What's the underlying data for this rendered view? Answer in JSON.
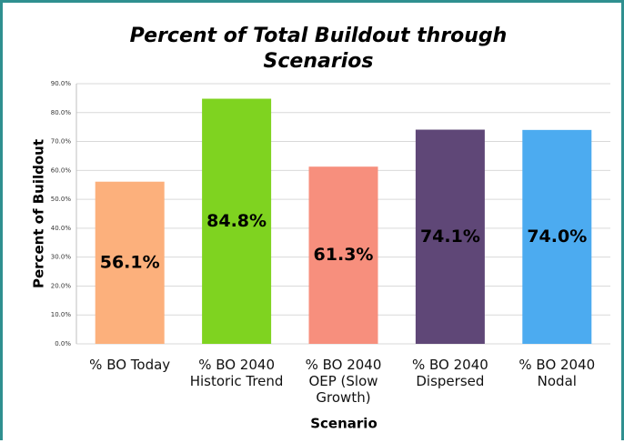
{
  "chart_data": {
    "type": "bar",
    "title": "Percent of Total Buildout through Scenarios",
    "x_label": "Scenario",
    "y_label": "Percent of Buildout",
    "categories": [
      "% BO Today",
      "% BO 2040 Historic Trend",
      "% BO 2040 OEP (Slow Growth)",
      "% BO 2040 Dispersed",
      "% BO 2040 Nodal"
    ],
    "values": [
      56.1,
      84.8,
      61.3,
      74.1,
      74.0
    ],
    "value_labels": [
      "56.1%",
      "84.8%",
      "61.3%",
      "74.1%",
      "74.0%"
    ],
    "colors": [
      "#fcb07c",
      "#7fd320",
      "#f78f7d",
      "#5f4777",
      "#4cabf0"
    ],
    "ylim": [
      0,
      90
    ],
    "yticks": [
      {
        "value": 0,
        "label": "0.0%"
      },
      {
        "value": 10,
        "label": "10.0%"
      },
      {
        "value": 20,
        "label": "20.0%"
      },
      {
        "value": 30,
        "label": "30.0%"
      },
      {
        "value": 40,
        "label": "40.0%"
      },
      {
        "value": 50,
        "label": "50.0%"
      },
      {
        "value": 60,
        "label": "60.0%"
      },
      {
        "value": 70,
        "label": "70.0%"
      },
      {
        "value": 80,
        "label": "80.0%"
      },
      {
        "value": 90,
        "label": "90.0%"
      }
    ],
    "grid": true
  }
}
